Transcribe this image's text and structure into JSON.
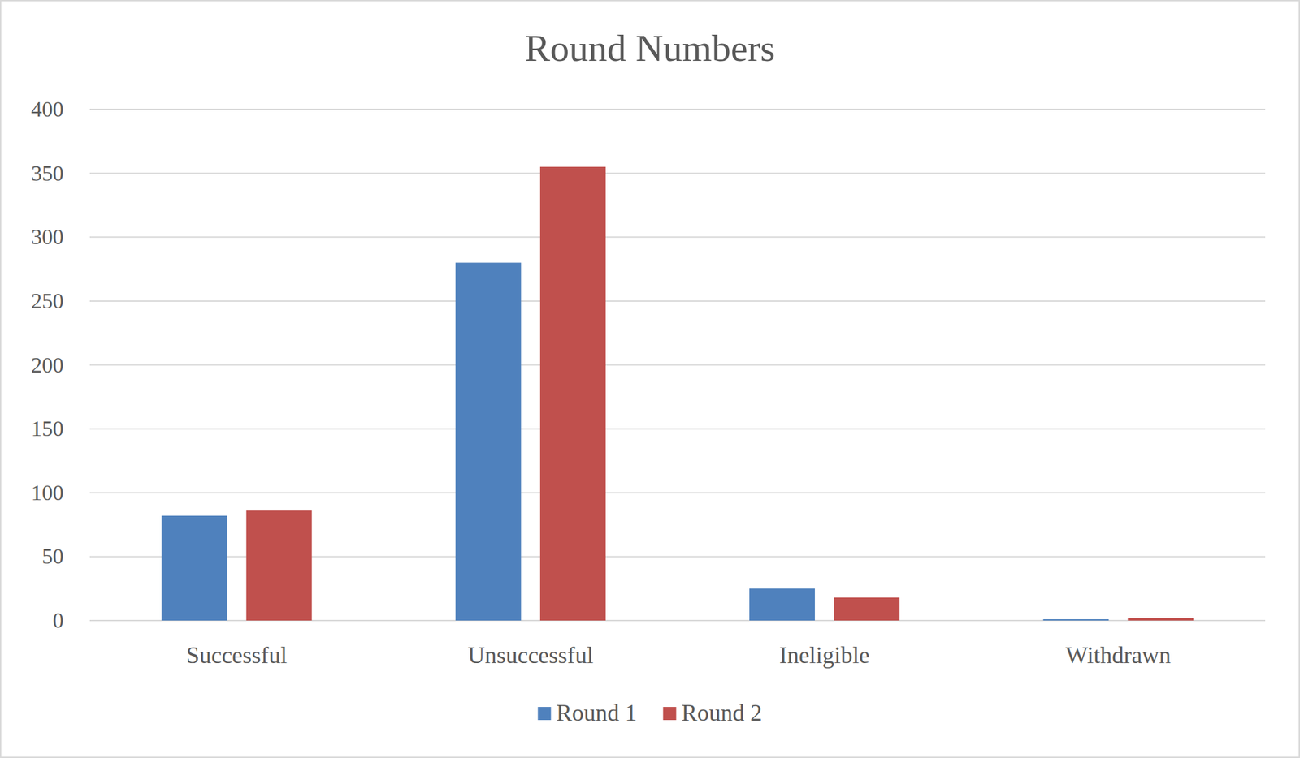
{
  "chart_data": {
    "type": "bar",
    "title": "Round Numbers",
    "categories": [
      "Successful",
      "Unsuccessful",
      "Ineligible",
      "Withdrawn"
    ],
    "series": [
      {
        "name": "Round 1",
        "color": "#4f81bd",
        "values": [
          82,
          280,
          25,
          1
        ]
      },
      {
        "name": "Round 2",
        "color": "#c0504d",
        "values": [
          86,
          355,
          18,
          2
        ]
      }
    ],
    "ylim": [
      0,
      400
    ],
    "yticks": [
      0,
      50,
      100,
      150,
      200,
      250,
      300,
      350,
      400
    ],
    "grid": true,
    "legend": "bottom"
  }
}
